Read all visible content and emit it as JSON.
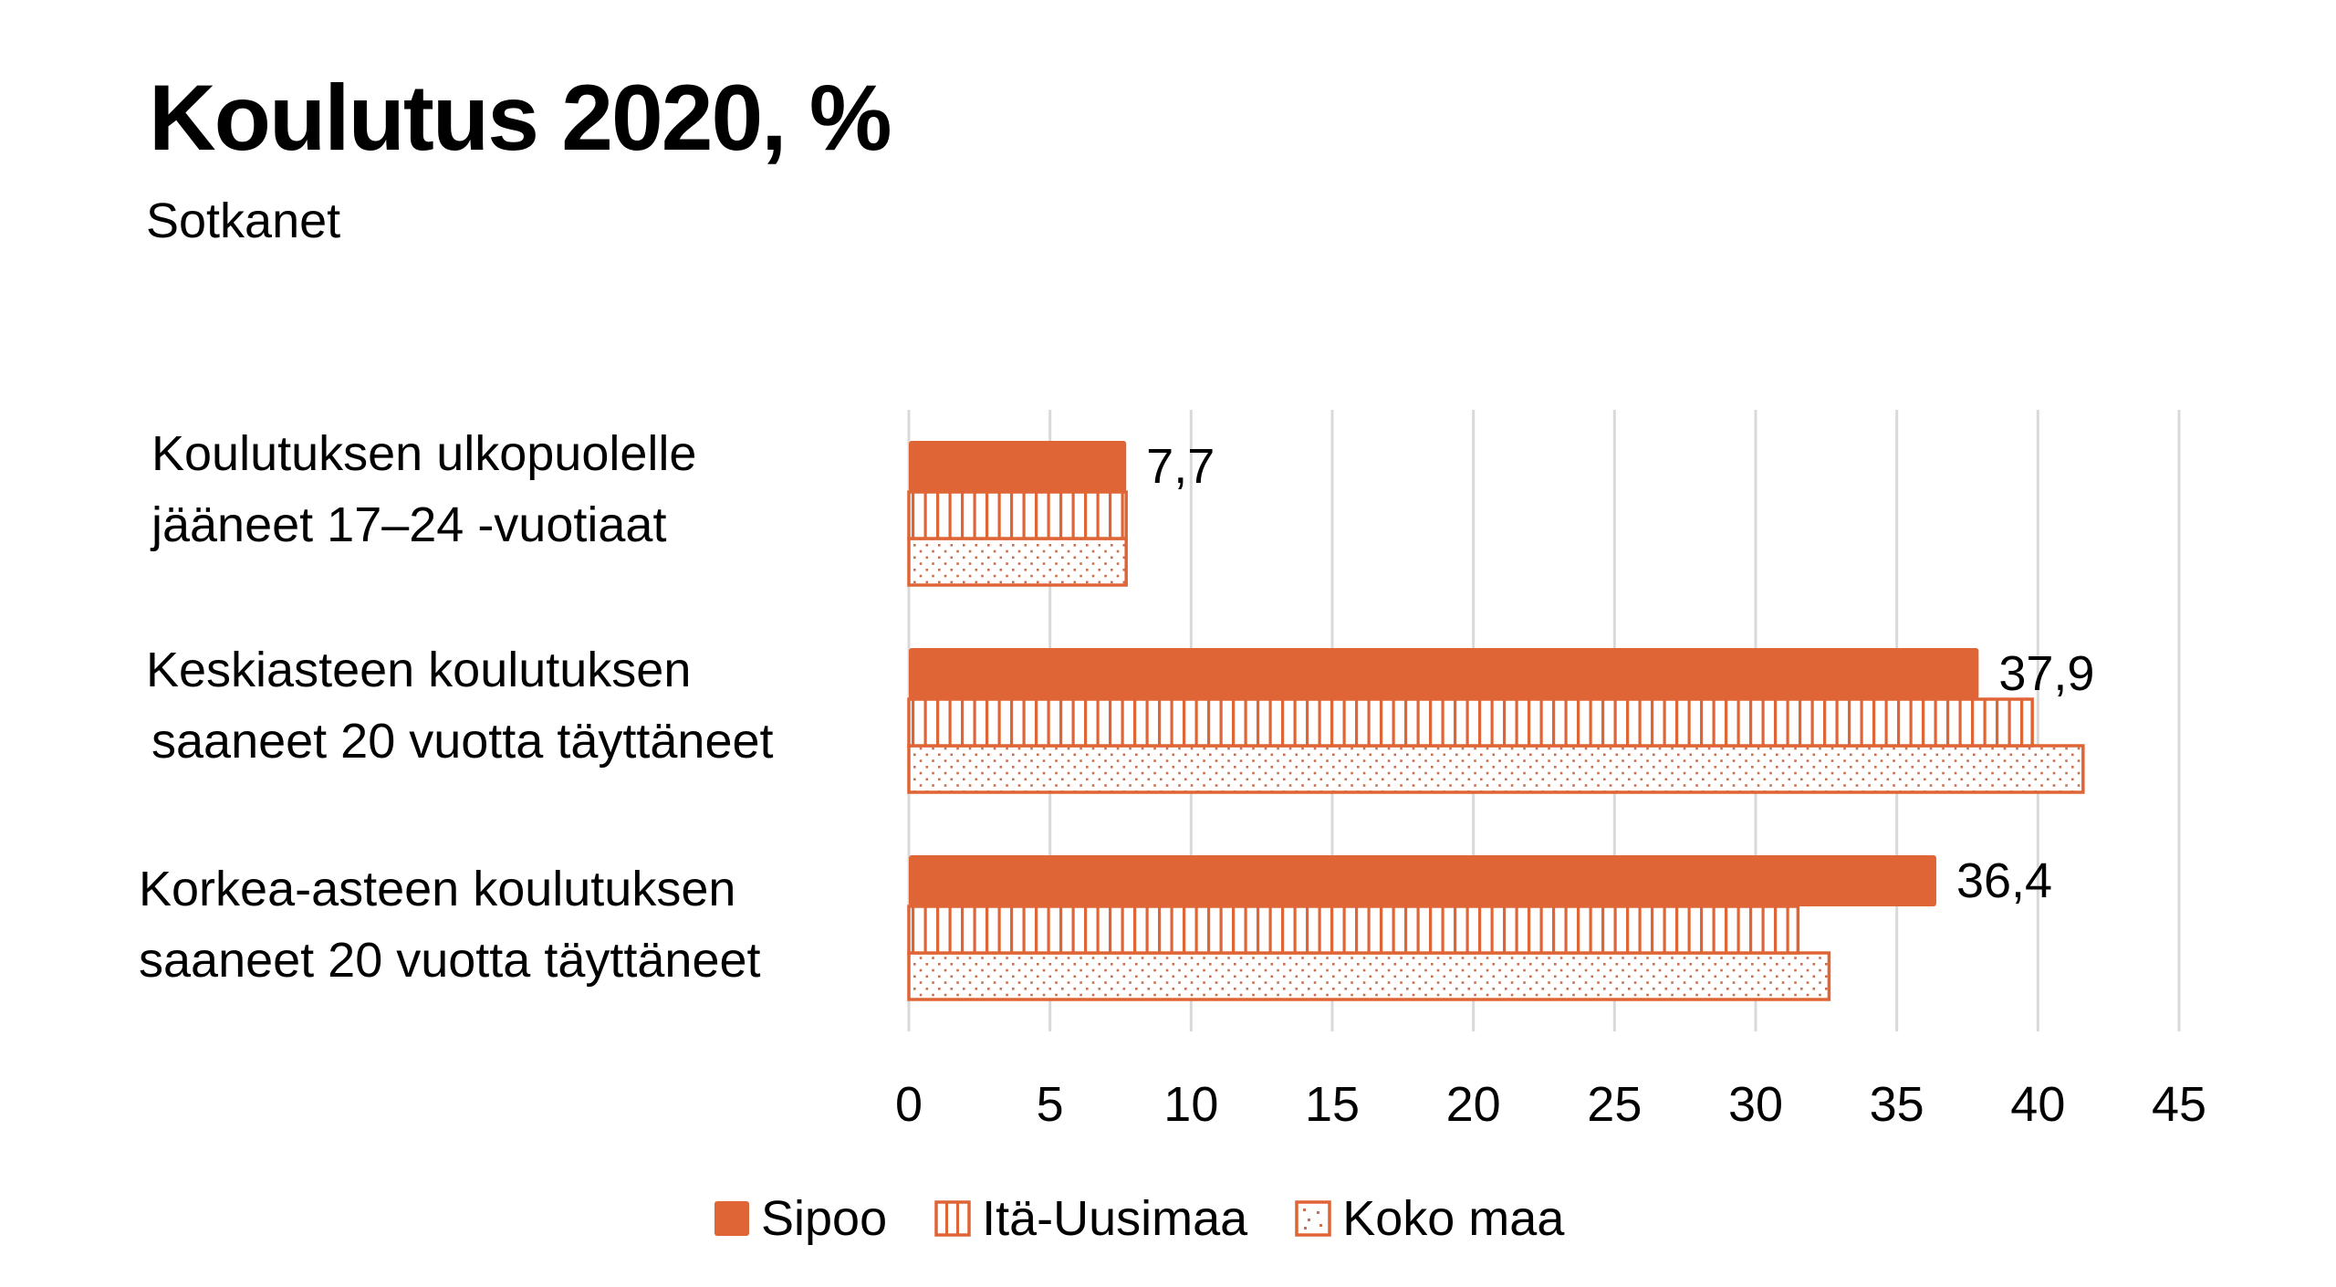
{
  "chart_data": {
    "type": "bar",
    "orientation": "horizontal",
    "title": "Koulutus 2020, %",
    "subtitle": "Sotkanet",
    "xlabel": "",
    "ylabel": "",
    "xlim": [
      0,
      45
    ],
    "x_ticks": [
      "0",
      "5",
      "10",
      "15",
      "20",
      "25",
      "30",
      "35",
      "40",
      "45"
    ],
    "x_tick_values": [
      0,
      5,
      10,
      15,
      20,
      25,
      30,
      35,
      40,
      45
    ],
    "grid": true,
    "legend_position": "bottom",
    "categories": [
      [
        "Koulutuksen ulkopuolelle",
        "jääneet 17–24 -vuotiaat"
      ],
      [
        "Keskiasteen koulutuksen",
        "saaneet 20 vuotta täyttäneet"
      ],
      [
        "Korkea-asteen koulutuksen",
        "saaneet 20 vuotta täyttäneet"
      ]
    ],
    "series": [
      {
        "name": "Sipoo",
        "pattern": "solid",
        "values": [
          7.7,
          37.9,
          36.4
        ],
        "labels": [
          "7,7",
          "37,9",
          "36,4"
        ]
      },
      {
        "name": "Itä-Uusimaa",
        "pattern": "vertical-lines",
        "values": [
          7.7,
          39.8,
          31.5
        ]
      },
      {
        "name": "Koko maa",
        "pattern": "dots",
        "values": [
          7.7,
          41.6,
          32.6
        ]
      }
    ],
    "colors": {
      "bar": "#e06536",
      "grid": "#d9d9d9",
      "text": "#000000"
    }
  }
}
